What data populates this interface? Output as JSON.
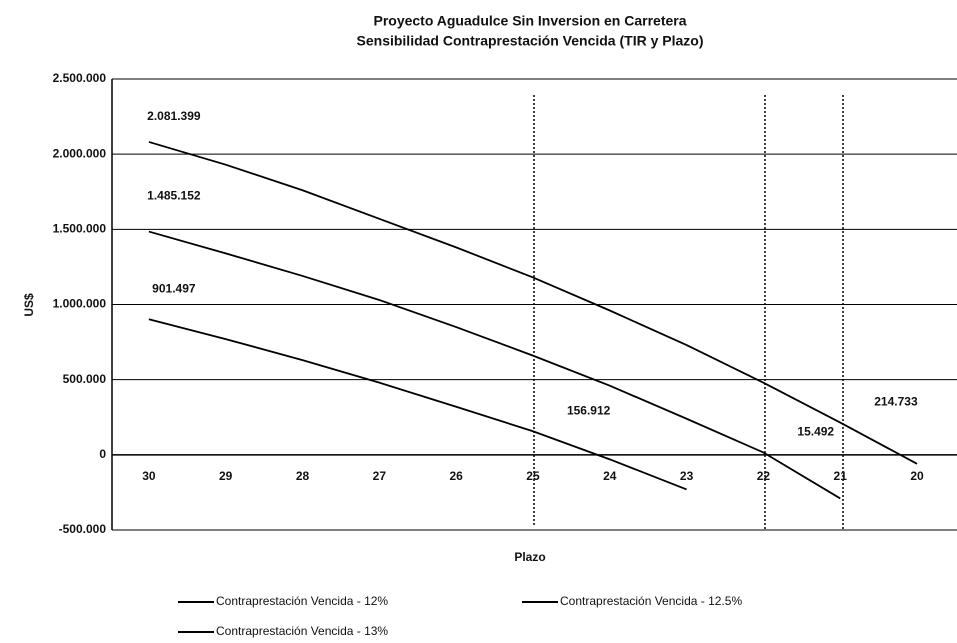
{
  "chart_data": {
    "type": "line",
    "title": [
      "Proyecto Aguadulce Sin Inversion en Carretera",
      "Sensibilidad Contraprestación Vencida (TIR y Plazo)"
    ],
    "xlabel": "Plazo",
    "ylabel": "US$",
    "categories": [
      30,
      29,
      28,
      27,
      26,
      25,
      24,
      23,
      22,
      21,
      20
    ],
    "series": [
      {
        "name": "Contraprestación Vencida - 12%",
        "color": "#000000",
        "values": [
          2081399,
          1930000,
          1760000,
          1570000,
          1380000,
          1180000,
          960000,
          730000,
          480000,
          214733,
          -60000
        ],
        "value_labels": [
          "2.081.399",
          null,
          null,
          null,
          null,
          null,
          null,
          null,
          null,
          "214.733",
          null
        ]
      },
      {
        "name": "Contraprestación Vencida - 12.5%",
        "color": "#000000",
        "values": [
          1485152,
          1340000,
          1190000,
          1030000,
          850000,
          660000,
          460000,
          240000,
          15492,
          -290000,
          null
        ],
        "value_labels": [
          "1.485.152",
          null,
          null,
          null,
          null,
          null,
          null,
          null,
          "15.492",
          null,
          null
        ]
      },
      {
        "name": "Contraprestación Vencida - 13%",
        "color": "#000000",
        "values": [
          901497,
          770000,
          630000,
          480000,
          320000,
          156912,
          -30000,
          -230000,
          null,
          null,
          null
        ],
        "value_labels": [
          "901.497",
          null,
          null,
          null,
          null,
          "156.912",
          null,
          null,
          null,
          null,
          null
        ]
      }
    ],
    "ylim": [
      -500000,
      2500000
    ],
    "yticks": [
      {
        "value": -500000,
        "label": "-500.000"
      },
      0,
      {
        "value": 500000,
        "label": "500.000"
      },
      {
        "value": 1000000,
        "label": "1.000.000"
      },
      {
        "value": 1500000,
        "label": "1.500.000"
      },
      {
        "value": 2000000,
        "label": "2.000.000"
      },
      {
        "value": 2500000,
        "label": "2.500.000"
      }
    ],
    "grid": true
  }
}
